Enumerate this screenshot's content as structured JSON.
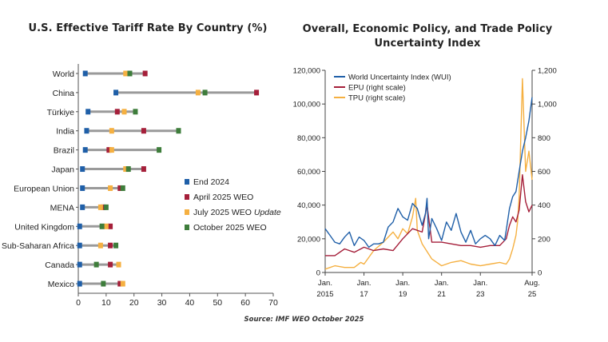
{
  "source": "Source: IMF WEO October 2025",
  "colors": {
    "end2024": "#1f5fa8",
    "april2025": "#a51f3a",
    "july2025": "#f5b041",
    "oct2025": "#3e7d3b",
    "bar": "#9a9a9a",
    "wui": "#1f5fa8",
    "epu": "#a51f3a",
    "tpu": "#f5b041"
  },
  "chart_data": [
    {
      "type": "dot-range",
      "title": "U.S. Effective Tariff Rate By Country (%)",
      "xlim": [
        0,
        70
      ],
      "xticks": [
        "0",
        "10",
        "20",
        "30",
        "40",
        "50",
        "60",
        "70"
      ],
      "legend": [
        "End 2024",
        "April 2025 WEO",
        "July 2025 WEO Update",
        "October 2025 WEO"
      ],
      "categories": [
        "World",
        "China",
        "Türkiye",
        "India",
        "Brazil",
        "Japan",
        "European Union",
        "MENA",
        "United Kingdom",
        "Sub-Saharan Africa",
        "Canada",
        "Mexico"
      ],
      "series": [
        {
          "name": "End 2024",
          "values": [
            2.5,
            13.5,
            3.5,
            3,
            2.5,
            1.5,
            1.5,
            1.5,
            0.5,
            0.5,
            0.5,
            0.5
          ]
        },
        {
          "name": "April 2025 WEO",
          "values": [
            24,
            64,
            14,
            23.5,
            11,
            23.5,
            15,
            9,
            11.5,
            11.5,
            11.5,
            15
          ]
        },
        {
          "name": "July 2025 WEO Update",
          "values": [
            17,
            43,
            16.5,
            12,
            12,
            17,
            11.5,
            8,
            10,
            8,
            14.5,
            16
          ]
        },
        {
          "name": "October 2025 WEO",
          "values": [
            18.5,
            45.5,
            20.5,
            36,
            29,
            18,
            16,
            10,
            8.5,
            13.5,
            6.5,
            9
          ]
        }
      ]
    },
    {
      "type": "line",
      "title": "Overall, Economic Policy, and Trade Policy Uncertainty Index",
      "x_ticks": [
        "Jan. 2015",
        "Jan. 17",
        "Jan. 19",
        "Jan. 21",
        "Jan. 23",
        "Aug. 25"
      ],
      "ylim_left": [
        0,
        120000
      ],
      "yticks_left": [
        "0",
        "20,000",
        "40,000",
        "60,000",
        "80,000",
        "100,000",
        "120,000"
      ],
      "ylim_right": [
        0,
        1200
      ],
      "yticks_right": [
        "0",
        "200",
        "400",
        "600",
        "800",
        "1,000",
        "1,200"
      ],
      "series": [
        {
          "name": "World Uncertainty Index (WUI)",
          "axis": "left",
          "x_months_since_jan2015": [
            0,
            3,
            6,
            9,
            12,
            15,
            18,
            21,
            24,
            27,
            30,
            33,
            36,
            39,
            42,
            45,
            48,
            51,
            54,
            57,
            60,
            62,
            63,
            64,
            66,
            69,
            72,
            75,
            78,
            81,
            84,
            87,
            90,
            93,
            96,
            99,
            102,
            105,
            108,
            111,
            112,
            114,
            116,
            118,
            120,
            122,
            124,
            126,
            128
          ],
          "values": [
            26000,
            22000,
            18000,
            17000,
            21000,
            24000,
            16000,
            21000,
            19000,
            15000,
            17000,
            17000,
            18000,
            27000,
            30000,
            38000,
            33000,
            31000,
            41000,
            38000,
            28000,
            35000,
            44000,
            20000,
            32000,
            26000,
            19000,
            30000,
            25000,
            35000,
            24000,
            18000,
            25000,
            17000,
            20000,
            22000,
            20000,
            16000,
            22000,
            19000,
            25000,
            38000,
            45000,
            48000,
            60000,
            72000,
            80000,
            90000,
            104000
          ]
        },
        {
          "name": "EPU (right scale)",
          "axis": "right",
          "x_months_since_jan2015": [
            0,
            6,
            12,
            18,
            24,
            30,
            36,
            42,
            48,
            54,
            60,
            63,
            66,
            72,
            78,
            84,
            90,
            96,
            102,
            108,
            112,
            114,
            116,
            118,
            120,
            122,
            124,
            126,
            128
          ],
          "values": [
            100,
            100,
            140,
            120,
            150,
            130,
            140,
            130,
            200,
            260,
            240,
            400,
            180,
            180,
            170,
            160,
            160,
            150,
            160,
            160,
            200,
            280,
            330,
            300,
            370,
            580,
            420,
            360,
            400
          ]
        },
        {
          "name": "TPU (right scale)",
          "axis": "right",
          "x_months_since_jan2015": [
            0,
            6,
            12,
            18,
            22,
            24,
            30,
            36,
            42,
            45,
            48,
            51,
            54,
            56,
            57,
            60,
            66,
            72,
            78,
            84,
            90,
            96,
            102,
            108,
            112,
            114,
            116,
            118,
            119,
            120,
            122,
            124,
            126,
            128
          ],
          "values": [
            20,
            40,
            30,
            30,
            60,
            50,
            130,
            180,
            240,
            200,
            260,
            230,
            330,
            440,
            250,
            170,
            80,
            40,
            60,
            70,
            50,
            40,
            50,
            60,
            50,
            80,
            140,
            220,
            300,
            450,
            1150,
            600,
            720,
            550
          ]
        }
      ]
    }
  ]
}
